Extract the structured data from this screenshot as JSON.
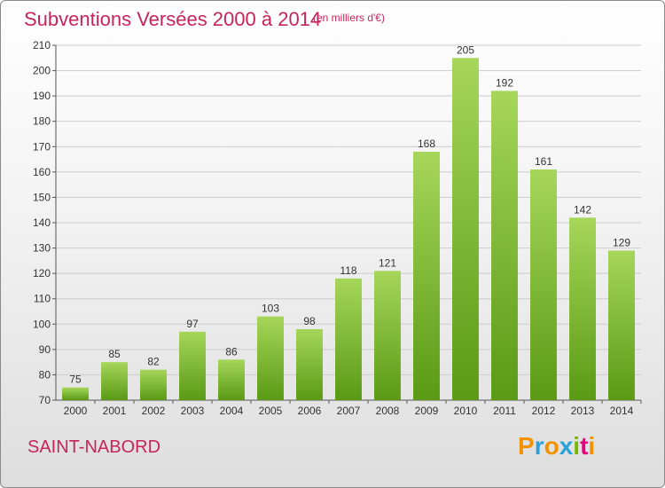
{
  "header": {
    "title": "Subventions Versées 2000 à 2014",
    "subtitle": "(en milliers d'€)"
  },
  "footer": {
    "commune": "SAINT-NABORD",
    "logo_letters": [
      "P",
      "r",
      "o",
      "x",
      "i",
      "t",
      "i"
    ],
    "logo_colors": [
      "#f39200",
      "#2aa0d8",
      "#f39200",
      "#2aa0d8",
      "#7ab800",
      "#e5007e",
      "#f39200"
    ]
  },
  "colors": {
    "bar_top": "#a6d65a",
    "bar_bottom": "#5a9a14",
    "title": "#c8245a",
    "grid": "#cccccc"
  },
  "chart_data": {
    "type": "bar",
    "title": "Subventions Versées 2000 à 2014",
    "subtitle": "(en milliers d'€)",
    "categories": [
      "2000",
      "2001",
      "2002",
      "2003",
      "2004",
      "2005",
      "2006",
      "2007",
      "2008",
      "2009",
      "2010",
      "2011",
      "2012",
      "2013",
      "2014"
    ],
    "values": [
      75,
      85,
      82,
      97,
      86,
      103,
      98,
      118,
      121,
      168,
      205,
      192,
      161,
      142,
      129
    ],
    "ylim": [
      70,
      210
    ],
    "yticks": [
      70,
      80,
      90,
      100,
      110,
      120,
      130,
      140,
      150,
      160,
      170,
      180,
      190,
      200,
      210
    ],
    "grid": true,
    "legend": "none"
  }
}
